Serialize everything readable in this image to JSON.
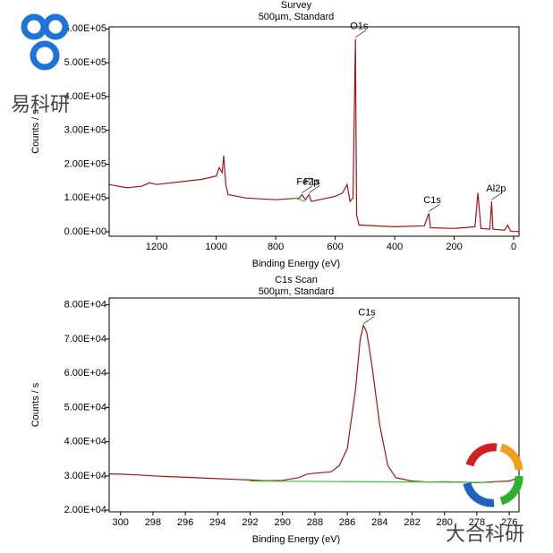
{
  "chart_data": [
    {
      "type": "line",
      "title": "Survey",
      "subtitle": "500µm,  Standard",
      "x_label": "Binding Energy (eV)",
      "y_label": "Counts / s",
      "xlim": [
        1360,
        -18
      ],
      "xticks": [
        1200,
        1000,
        800,
        600,
        400,
        200,
        0
      ],
      "ylim": [
        -13000,
        606000
      ],
      "yticks": [
        {
          "value": 0,
          "label": "0.00E+00"
        },
        {
          "value": 100000,
          "label": "1.00E+05"
        },
        {
          "value": 200000,
          "label": "2.00E+05"
        },
        {
          "value": 300000,
          "label": "3.00E+05"
        },
        {
          "value": 400000,
          "label": "4.00E+05"
        },
        {
          "value": 500000,
          "label": "5.00E+05"
        },
        {
          "value": 600000,
          "label": "6.00E+05"
        }
      ],
      "series": [
        {
          "color": "#a31515",
          "x": [
            1360,
            1300,
            1250,
            1225,
            1200,
            1100,
            1050,
            1000,
            990,
            980,
            975,
            968,
            960,
            900,
            800,
            720,
            712,
            700,
            688,
            680,
            600,
            575,
            560,
            550,
            540,
            532,
            528,
            520,
            400,
            300,
            285,
            280,
            200,
            130,
            120,
            110,
            80,
            74,
            70,
            30,
            20,
            10,
            0,
            -18
          ],
          "values": [
            140000,
            130000,
            135000,
            145000,
            140000,
            150000,
            155000,
            165000,
            190000,
            175000,
            225000,
            140000,
            110000,
            100000,
            95000,
            100000,
            110000,
            95000,
            110000,
            90000,
            105000,
            115000,
            140000,
            90000,
            100000,
            570000,
            50000,
            20000,
            15000,
            18000,
            55000,
            12000,
            10000,
            15000,
            115000,
            10000,
            8000,
            90000,
            8000,
            5000,
            20000,
            2000,
            1000,
            1000
          ]
        },
        {
          "color": "#33cc33",
          "x": [
            735,
            700
          ],
          "values": [
            100000,
            90000
          ]
        }
      ],
      "annotations": [
        {
          "text": "O1s",
          "x": 532,
          "y": 570000
        },
        {
          "text": "Fe2p",
          "x": 712,
          "y": 110000
        },
        {
          "text": "F1s",
          "x": 688,
          "y": 110000
        },
        {
          "text": "C1s",
          "x": 285,
          "y": 55000
        },
        {
          "text": "Al2p",
          "x": 74,
          "y": 90000
        }
      ]
    },
    {
      "type": "line",
      "title": "C1s Scan",
      "subtitle": "500µm,  Standard",
      "x_label": "Binding Energy (eV)",
      "y_label": "Counts / s",
      "xlim": [
        300.7,
        275.4
      ],
      "xticks": [
        300,
        298,
        296,
        294,
        292,
        290,
        288,
        286,
        284,
        282,
        280,
        278,
        276
      ],
      "ylim": [
        19500,
        82000
      ],
      "yticks": [
        {
          "value": 20000,
          "label": "2.00E+04"
        },
        {
          "value": 30000,
          "label": "3.00E+04"
        },
        {
          "value": 40000,
          "label": "4.00E+04"
        },
        {
          "value": 50000,
          "label": "5.00E+04"
        },
        {
          "value": 60000,
          "label": "6.00E+04"
        },
        {
          "value": 70000,
          "label": "7.00E+04"
        },
        {
          "value": 80000,
          "label": "8.00E+04"
        }
      ],
      "series": [
        {
          "color": "#a31515",
          "x": [
            300.7,
            300,
            299,
            298,
            297,
            296,
            295,
            294,
            293,
            292,
            291,
            290,
            289,
            288.5,
            288,
            287,
            286.5,
            286,
            285.5,
            285.2,
            285,
            284.8,
            284.5,
            284,
            283.5,
            283,
            282,
            281,
            280,
            279,
            278,
            277,
            276,
            275.4
          ],
          "values": [
            30600,
            30500,
            30300,
            30000,
            29800,
            29600,
            29400,
            29200,
            29000,
            28800,
            28600,
            28700,
            29500,
            30500,
            30800,
            31200,
            33000,
            38000,
            55000,
            70000,
            74000,
            72000,
            63000,
            45000,
            33000,
            29500,
            28500,
            28200,
            28300,
            28200,
            28000,
            28300,
            28500,
            29500
          ]
        },
        {
          "color": "#33cc33",
          "x": [
            292,
            277
          ],
          "values": [
            28500,
            28100
          ]
        }
      ],
      "annotations": [
        {
          "text": "C1s",
          "x": 285,
          "y": 74000
        }
      ]
    }
  ],
  "watermarks": [
    "易科研",
    "大合科研"
  ]
}
